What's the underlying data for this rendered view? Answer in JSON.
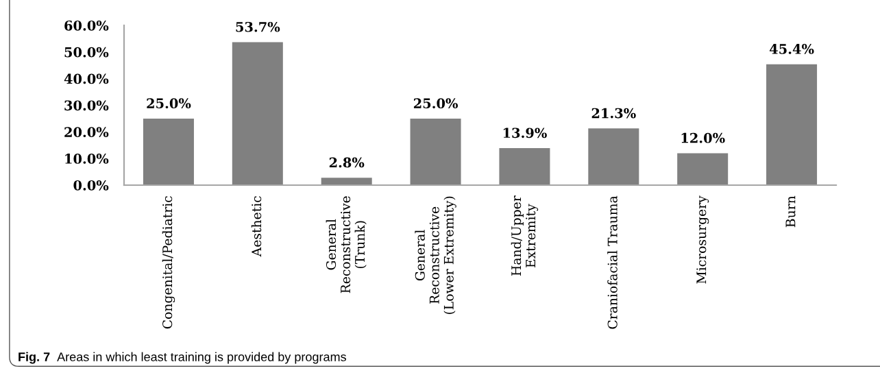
{
  "chart_data": {
    "type": "bar",
    "categories": [
      "Congenital/Pediatric",
      "Aesthetic",
      "General\nReconstructive\n(Trunk)",
      "General\nReconstructive\n(Lower Extremity)",
      "Hand/Upper\nExtremity",
      "Craniofacial Trauma",
      "Microsurgery",
      "Burn"
    ],
    "values": [
      25.0,
      53.7,
      2.8,
      25.0,
      13.9,
      21.3,
      12.0,
      45.4
    ],
    "value_labels": [
      "25.0%",
      "53.7%",
      "2.8%",
      "25.0%",
      "13.9%",
      "21.3%",
      "12.0%",
      "45.4%"
    ],
    "color": "#808080",
    "ylim": [
      0,
      60
    ],
    "yticks": [
      {
        "value": 0,
        "label": "0.0%"
      },
      {
        "value": 10,
        "label": "10.0%"
      },
      {
        "value": 20,
        "label": "20.0%"
      },
      {
        "value": 30,
        "label": "30.0%"
      },
      {
        "value": 40,
        "label": "40.0%"
      },
      {
        "value": 50,
        "label": "50.0%"
      },
      {
        "value": 60,
        "label": "60.0%"
      }
    ],
    "annotations": [
      "Fig. 7",
      "Areas in which least training is provided by programs"
    ]
  }
}
